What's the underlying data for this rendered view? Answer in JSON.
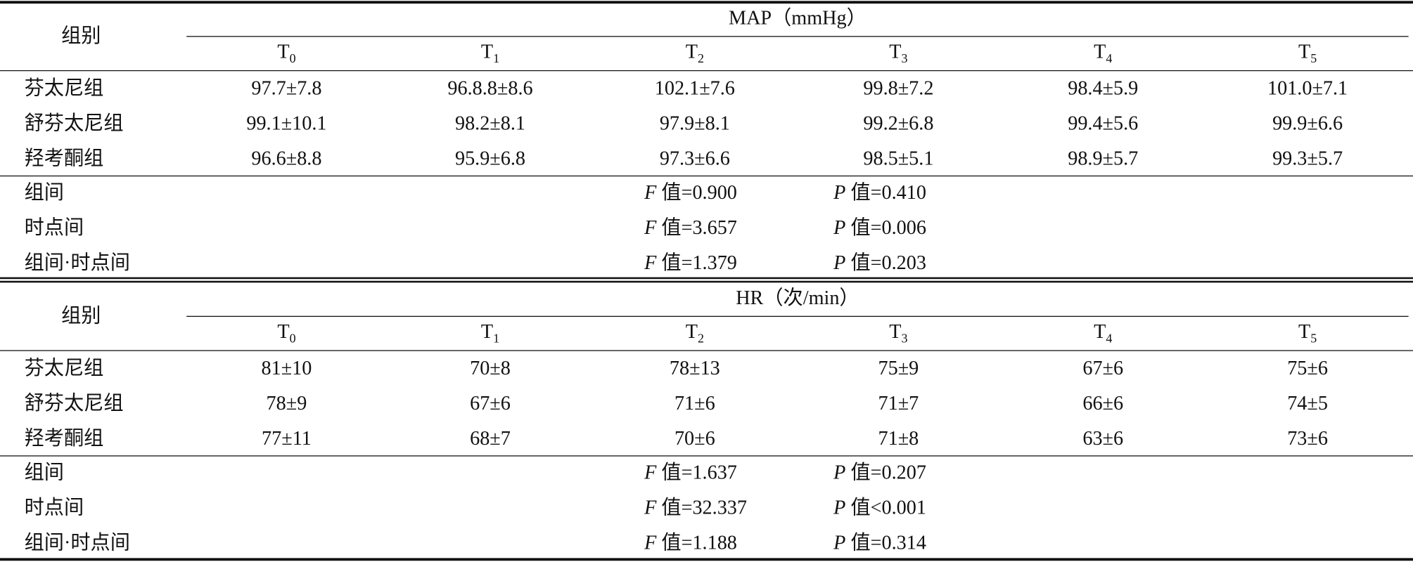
{
  "sections": [
    {
      "header": "组别",
      "title": "MAP（mmHg）",
      "timepoints": [
        {
          "base": "T",
          "sub": "0"
        },
        {
          "base": "T",
          "sub": "1"
        },
        {
          "base": "T",
          "sub": "2"
        },
        {
          "base": "T",
          "sub": "3"
        },
        {
          "base": "T",
          "sub": "4"
        },
        {
          "base": "T",
          "sub": "5"
        }
      ],
      "rows": [
        {
          "group": "芬太尼组",
          "values": [
            "97.7±7.8",
            "96.8.8±8.6",
            "102.1±7.6",
            "99.8±7.2",
            "98.4±5.9",
            "101.0±7.1"
          ]
        },
        {
          "group": "舒芬太尼组",
          "values": [
            "99.1±10.1",
            "98.2±8.1",
            "97.9±8.1",
            "99.2±6.8",
            "99.4±5.6",
            "99.9±6.6"
          ]
        },
        {
          "group": "羟考酮组",
          "values": [
            "96.6±8.8",
            "95.9±6.8",
            "97.3±6.6",
            "98.5±5.1",
            "98.9±5.7",
            "99.3±5.7"
          ]
        }
      ],
      "stats": [
        {
          "label": "组间",
          "f": {
            "symbol": "F",
            "text": " 值=0.900"
          },
          "p": {
            "symbol": "P",
            "text": " 值=0.410"
          }
        },
        {
          "label": "时点间",
          "f": {
            "symbol": "F",
            "text": " 值=3.657"
          },
          "p": {
            "symbol": "P",
            "text": " 值=0.006"
          }
        },
        {
          "label": "组间·时点间",
          "f": {
            "symbol": "F",
            "text": " 值=1.379"
          },
          "p": {
            "symbol": "P",
            "text": " 值=0.203"
          }
        }
      ]
    },
    {
      "header": "组别",
      "title": "HR（次/min）",
      "timepoints": [
        {
          "base": "T",
          "sub": "0"
        },
        {
          "base": "T",
          "sub": "1"
        },
        {
          "base": "T",
          "sub": "2"
        },
        {
          "base": "T",
          "sub": "3"
        },
        {
          "base": "T",
          "sub": "4"
        },
        {
          "base": "T",
          "sub": "5"
        }
      ],
      "rows": [
        {
          "group": "芬太尼组",
          "values": [
            "81±10",
            "70±8",
            "78±13",
            "75±9",
            "67±6",
            "75±6"
          ]
        },
        {
          "group": "舒芬太尼组",
          "values": [
            "78±9",
            "67±6",
            "71±6",
            "71±7",
            "66±6",
            "74±5"
          ]
        },
        {
          "group": "羟考酮组",
          "values": [
            "77±11",
            "68±7",
            "70±6",
            "71±8",
            "63±6",
            "73±6"
          ]
        }
      ],
      "stats": [
        {
          "label": "组间",
          "f": {
            "symbol": "F",
            "text": " 值=1.637"
          },
          "p": {
            "symbol": "P",
            "text": " 值=0.207"
          }
        },
        {
          "label": "时点间",
          "f": {
            "symbol": "F",
            "text": " 值=32.337"
          },
          "p": {
            "symbol": "P",
            "text": " 值<0.001"
          }
        },
        {
          "label": "组间·时点间",
          "f": {
            "symbol": "F",
            "text": " 值=1.188"
          },
          "p": {
            "symbol": "P",
            "text": " 值=0.314"
          }
        }
      ]
    }
  ]
}
